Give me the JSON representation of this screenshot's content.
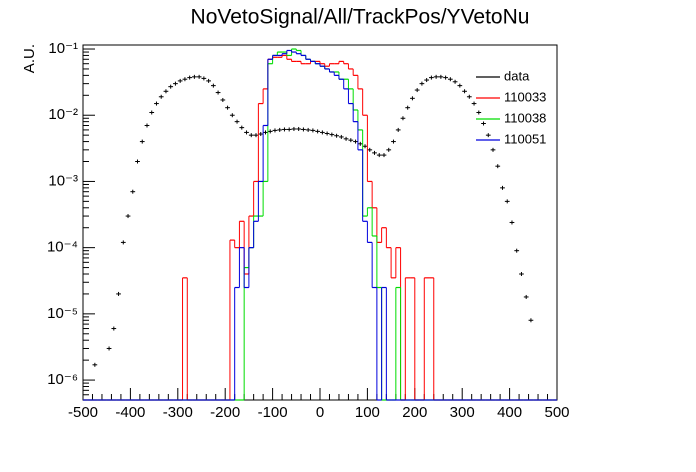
{
  "chart_data": {
    "type": "histogram",
    "title": "NoVetoSignal/All/TrackPos/YVetoNu",
    "y_label": "A.U.",
    "log_y": true,
    "legend": "top-right",
    "xlim": [
      -500,
      500
    ],
    "xticks": [
      -500,
      -400,
      -300,
      -200,
      -100,
      0,
      100,
      200,
      300,
      400,
      500
    ],
    "ylim": [
      5e-07,
      0.115
    ],
    "yticks": [
      {
        "value": 1e-06,
        "label": "10⁻⁶"
      },
      {
        "value": 1e-05,
        "label": "10⁻⁵"
      },
      {
        "value": 0.0001,
        "label": "10⁻⁴"
      },
      {
        "value": 0.001,
        "label": "10⁻³"
      },
      {
        "value": 0.01,
        "label": "10⁻²"
      },
      {
        "value": 0.1,
        "label": "10⁻¹"
      }
    ],
    "bins": [
      -500,
      -490,
      -480,
      -470,
      -460,
      -450,
      -440,
      -430,
      -420,
      -410,
      -400,
      -390,
      -380,
      -370,
      -360,
      -350,
      -340,
      -330,
      -320,
      -310,
      -300,
      -290,
      -280,
      -270,
      -260,
      -250,
      -240,
      -230,
      -220,
      -210,
      -200,
      -190,
      -180,
      -170,
      -160,
      -150,
      -140,
      -130,
      -120,
      -110,
      -100,
      -90,
      -80,
      -70,
      -60,
      -50,
      -40,
      -30,
      -20,
      -10,
      0,
      10,
      20,
      30,
      40,
      50,
      60,
      70,
      80,
      90,
      100,
      110,
      120,
      130,
      140,
      150,
      160,
      170,
      180,
      190,
      200,
      210,
      220,
      230,
      240,
      250,
      260,
      270,
      280,
      290,
      300,
      310,
      320,
      330,
      340,
      350,
      360,
      370,
      380,
      390,
      400,
      410,
      420,
      430,
      440,
      450,
      460,
      470,
      480,
      490,
      500
    ],
    "series": [
      {
        "name": "data",
        "style": "points",
        "color": "#000000",
        "values": [
          null,
          null,
          1.7e-06,
          null,
          null,
          3e-06,
          6e-06,
          2e-05,
          0.00012,
          0.0003,
          0.0007,
          0.002,
          0.004,
          0.007,
          0.011,
          0.015,
          0.019,
          0.023,
          0.027,
          0.03,
          0.033,
          0.035,
          0.037,
          0.038,
          0.038,
          0.036,
          0.033,
          0.028,
          0.022,
          0.017,
          0.013,
          0.01,
          0.008,
          0.0065,
          0.0055,
          0.005,
          0.005,
          0.0052,
          0.0055,
          0.0057,
          0.0059,
          0.006,
          0.0061,
          0.0061,
          0.0062,
          0.0062,
          0.0061,
          0.006,
          0.0059,
          0.0057,
          0.0055,
          0.0053,
          0.0051,
          0.0049,
          0.0047,
          0.0044,
          0.0042,
          0.004,
          0.0037,
          0.0034,
          0.003,
          0.0027,
          0.0025,
          0.0025,
          0.003,
          0.004,
          0.006,
          0.009,
          0.013,
          0.018,
          0.024,
          0.03,
          0.034,
          0.037,
          0.038,
          0.038,
          0.037,
          0.035,
          0.032,
          0.028,
          0.023,
          0.019,
          0.015,
          0.011,
          0.0075,
          0.005,
          0.003,
          0.0017,
          0.0008,
          0.0005,
          0.00024,
          9e-05,
          4e-05,
          1.8e-05,
          8e-06,
          null,
          null,
          null,
          null,
          null
        ]
      },
      {
        "name": "110033",
        "style": "step",
        "color": "#ff0000",
        "values": [
          0,
          0,
          0,
          0,
          0,
          0,
          0,
          0,
          0,
          0,
          0,
          0,
          0,
          0,
          0,
          0,
          0,
          0,
          0,
          0,
          0,
          3.5e-05,
          0,
          0,
          0,
          0,
          0,
          0,
          0,
          0,
          0,
          0.00013,
          0.0001,
          0.00025,
          4e-05,
          0.0003,
          0.001,
          0.015,
          0.025,
          0.07,
          0.075,
          0.075,
          0.08,
          0.07,
          0.065,
          0.065,
          0.06,
          0.06,
          0.065,
          0.065,
          0.06,
          0.055,
          0.06,
          0.06,
          0.065,
          0.06,
          0.05,
          0.04,
          0.025,
          0.01,
          0.001,
          0.0004,
          0.00012,
          0.0002,
          0.0001,
          3.5e-05,
          0.0001,
          0,
          3.5e-05,
          3.5e-05,
          0,
          0,
          3.5e-05,
          3.5e-05,
          0,
          0,
          0,
          0,
          0,
          0,
          0,
          0,
          0,
          0,
          0,
          0,
          0,
          0,
          0,
          0,
          0,
          0,
          0,
          0,
          0,
          0,
          0,
          0,
          0,
          0
        ]
      },
      {
        "name": "110038",
        "style": "step",
        "color": "#00dd00",
        "values": [
          0,
          0,
          0,
          0,
          0,
          0,
          0,
          0,
          0,
          0,
          0,
          0,
          0,
          0,
          0,
          0,
          0,
          0,
          0,
          0,
          0,
          0,
          0,
          0,
          0,
          0,
          0,
          0,
          0,
          0,
          0,
          0,
          0,
          0,
          5e-05,
          0.0001,
          0.0003,
          0.0003,
          0.001,
          0.06,
          0.08,
          0.09,
          0.09,
          0.08,
          0.1,
          0.095,
          0.08,
          0.07,
          0.065,
          0.06,
          0.055,
          0.05,
          0.045,
          0.045,
          0.035,
          0.035,
          0.025,
          0.012,
          0.006,
          0.0003,
          0.0004,
          0.00015,
          2.5e-05,
          0,
          0,
          0,
          2.5e-05,
          0,
          0,
          0,
          0,
          0,
          0,
          0,
          0,
          0,
          0,
          0,
          0,
          0,
          0,
          0,
          0,
          0,
          0,
          0,
          0,
          0,
          0,
          0,
          0,
          0,
          0,
          0,
          0,
          0,
          0,
          0,
          0,
          0
        ]
      },
      {
        "name": "110051",
        "style": "step",
        "color": "#0000dd",
        "values": [
          0,
          0,
          0,
          0,
          0,
          0,
          0,
          0,
          0,
          0,
          0,
          0,
          0,
          0,
          0,
          0,
          0,
          0,
          0,
          0,
          0,
          0,
          0,
          0,
          0,
          0,
          0,
          0,
          0,
          0,
          0,
          0,
          2.5e-05,
          0.0001,
          2.5e-05,
          0.0001,
          0.00025,
          0.001,
          0.007,
          0.07,
          0.08,
          0.08,
          0.085,
          0.095,
          0.09,
          0.085,
          0.08,
          0.07,
          0.065,
          0.06,
          0.055,
          0.05,
          0.045,
          0.04,
          0.035,
          0.025,
          0.015,
          0.008,
          0.003,
          0.00025,
          0.00012,
          2.5e-05,
          0,
          2.5e-05,
          0,
          0,
          0,
          0,
          0,
          0,
          0,
          0,
          0,
          0,
          0,
          0,
          0,
          0,
          0,
          0,
          0,
          0,
          0,
          0,
          0,
          0,
          0,
          0,
          0,
          0,
          0,
          0,
          0,
          0,
          0,
          0,
          0,
          0,
          0,
          0
        ]
      }
    ]
  }
}
